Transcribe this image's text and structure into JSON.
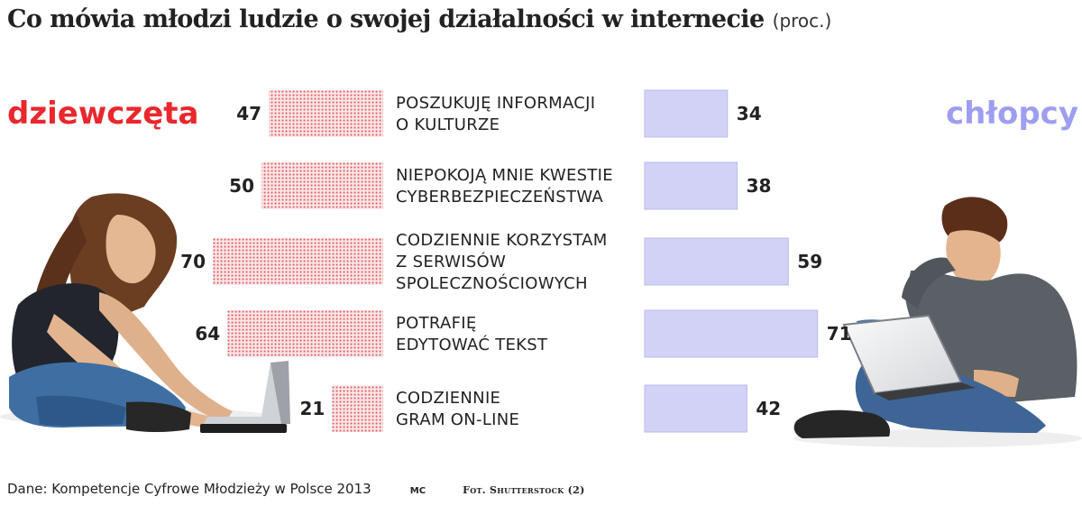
{
  "header": {
    "title": "Co mówia młodzi ludzie o swojej działalności w internecie",
    "unit": "(proc.)"
  },
  "chart_data": {
    "type": "bar",
    "layout": "back-to-back horizontal bars",
    "title": "Co mówia młodzi ludzie o swojej działalności w internecie",
    "unit": "(proc.)",
    "categories": [
      [
        "POSZUKUJĘ INFORMACJI",
        "O KULTURZE"
      ],
      [
        "NIEPOKOJĄ MNIE KWESTIE",
        "CYBERBEZPIECZEŃSTWA"
      ],
      [
        "CODZIENNIE KORZYSTAM",
        "Z SERWISÓW",
        "SPOLECZNOŚCIOWYCH"
      ],
      [
        "POTRAFIĘ",
        "EDYTOWAĆ TEKST"
      ],
      [
        "CODZIENNIE",
        "GRAM ON-LINE"
      ]
    ],
    "series": [
      {
        "name": "dziewczęta",
        "values": [
          47,
          50,
          70,
          64,
          21
        ],
        "color": "#e8282d",
        "pattern": "dotted",
        "side": "left"
      },
      {
        "name": "chłopcy",
        "values": [
          34,
          38,
          59,
          71,
          42
        ],
        "color": "#9e9ef0",
        "fill": "#d2d2f6",
        "side": "right"
      }
    ],
    "xlim": [
      0,
      100
    ],
    "grid": false,
    "legend": "group labels at left and right edges"
  },
  "footer": {
    "source": "Dane: Kompetencje Cyfrowe Młodzieży w Polsce 2013",
    "author": "MC",
    "photo_credit": "Fot. Shutterstock (2)"
  }
}
